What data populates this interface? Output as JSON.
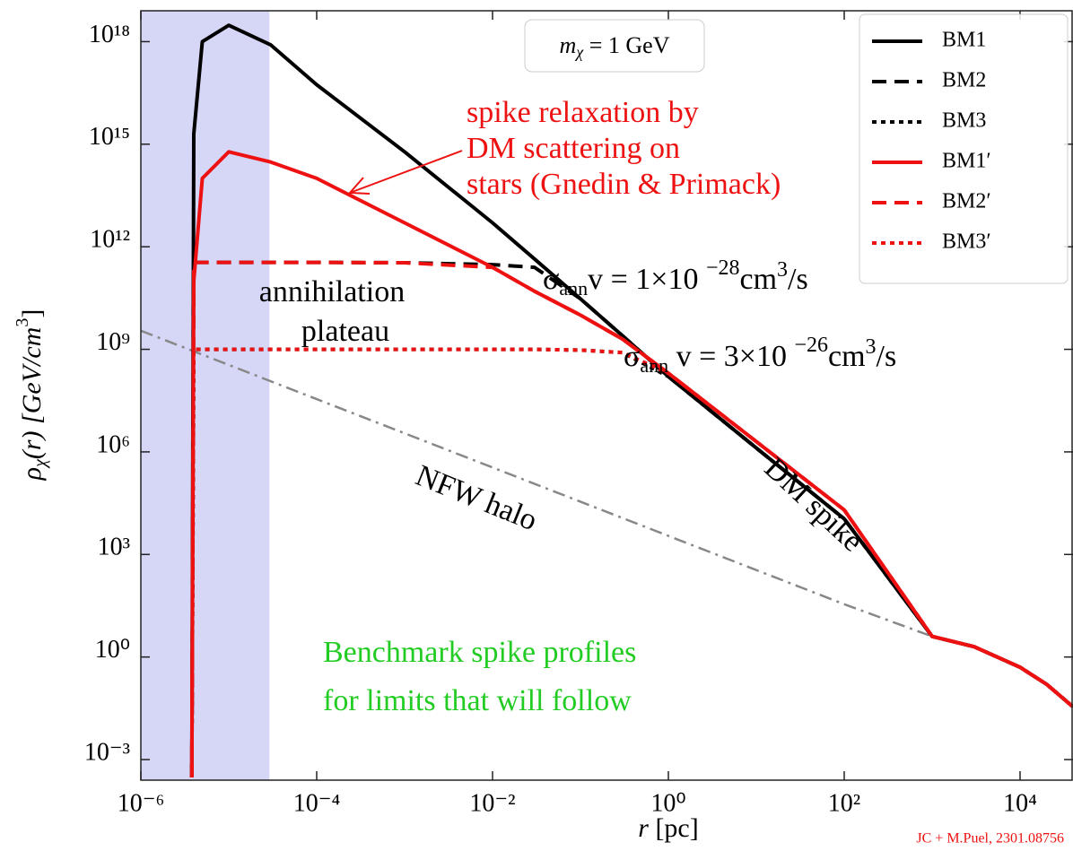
{
  "chart_data": {
    "type": "line",
    "log_x": true,
    "log_y": true,
    "x_label": [
      "r",
      " [pc]"
    ],
    "y_label": [
      "ρ",
      "χ",
      "(r) [GeV/cm",
      "3",
      "]"
    ],
    "xlim": [
      1e-06,
      40000
    ],
    "ylim": [
      0.00025,
      8e+18
    ],
    "xticks": [
      {
        "value": 1e-06,
        "label": "10⁻⁶"
      },
      {
        "value": 0.0001,
        "label": "10⁻⁴"
      },
      {
        "value": 0.01,
        "label": "10⁻²"
      },
      {
        "value": 1,
        "label": "10⁰"
      },
      {
        "value": 100,
        "label": "10²"
      },
      {
        "value": 10000,
        "label": "10⁴"
      }
    ],
    "yticks": [
      {
        "value": 0.001,
        "label": "10⁻³"
      },
      {
        "value": 1,
        "label": "10⁰"
      },
      {
        "value": 1000,
        "label": "10³"
      },
      {
        "value": 1000000.0,
        "label": "10⁶"
      },
      {
        "value": 1000000000.0,
        "label": "10⁹"
      },
      {
        "value": 1000000000000.0,
        "label": "10¹²"
      },
      {
        "value": 1000000000000000.0,
        "label": "10¹⁵"
      },
      {
        "value": 1e+18,
        "label": "10¹⁸"
      }
    ],
    "x": [
      3.8e-06,
      4e-06,
      5e-06,
      1e-05,
      3e-05,
      0.0001,
      0.001,
      0.01,
      0.03,
      0.1,
      0.3,
      1,
      10,
      100,
      1000,
      3000,
      10000,
      20000,
      40000
    ],
    "series": [
      {
        "name": "BM1",
        "color": "#000000",
        "style": "solid",
        "values": [
          0.0003,
          2000000000000000.0,
          1e+18,
          3e+18,
          8e+17,
          5.5e+16,
          600000000000000.0,
          5000000000000.0,
          440000000000.0,
          30000000000.0,
          2500000000.0,
          160000000.0,
          1300000.0,
          11000,
          4,
          2,
          0.5,
          0.16,
          0.035
        ]
      },
      {
        "name": "BM2",
        "color": "#000000",
        "style": "dashed",
        "values": [
          0.0003,
          350000000000.0,
          350000000000.0,
          350000000000.0,
          350000000000.0,
          350000000000.0,
          340000000000.0,
          300000000000.0,
          250000000000.0,
          30000000000.0,
          2500000000.0,
          160000000.0,
          1300000.0,
          11000,
          4,
          2,
          0.5,
          0.16,
          0.035
        ]
      },
      {
        "name": "BM3",
        "color": "#000000",
        "style": "dotted",
        "values": [
          0.0003,
          1000000000.0,
          1000000000.0,
          1000000000.0,
          1000000000.0,
          1000000000.0,
          1000000000.0,
          1000000000.0,
          1000000000.0,
          950000000.0,
          800000000.0,
          160000000.0,
          1300000.0,
          11000,
          4,
          2,
          0.5,
          0.16,
          0.035
        ]
      },
      {
        "name": "BM1′",
        "color": "#ee1111",
        "style": "solid",
        "values": [
          0.0003,
          100000000000.0,
          100000000000000.0,
          600000000000000.0,
          300000000000000.0,
          100000000000000.0,
          5000000000000.0,
          250000000000.0,
          50000000000.0,
          10000000000.0,
          2000000000.0,
          200000000.0,
          2000000.0,
          20000,
          4,
          2,
          0.5,
          0.16,
          0.035
        ]
      },
      {
        "name": "BM2′",
        "color": "#ee1111",
        "style": "dashed",
        "values": [
          0.0003,
          350000000000.0,
          350000000000.0,
          350000000000.0,
          350000000000.0,
          350000000000.0,
          340000000000.0,
          250000000000.0,
          50000000000.0,
          10000000000.0,
          2000000000.0,
          200000000.0,
          2000000.0,
          20000,
          4,
          2,
          0.5,
          0.16,
          0.035
        ]
      },
      {
        "name": "BM3′",
        "color": "#ee1111",
        "style": "dotted",
        "values": [
          0.0003,
          1000000000.0,
          1000000000.0,
          1000000000.0,
          1000000000.0,
          1000000000.0,
          1000000000.0,
          1000000000.0,
          1000000000.0,
          950000000.0,
          800000000.0,
          200000000.0,
          2000000.0,
          20000,
          4,
          2,
          0.5,
          0.16,
          0.035
        ]
      }
    ],
    "halo": {
      "name": "NFW halo",
      "color": "#888888",
      "style": "dashdot",
      "x": [
        1e-06,
        0.0001,
        0.01,
        1,
        100,
        1000,
        3000,
        10000,
        20000,
        40000
      ],
      "values": [
        3500000000.0,
        35000000.0,
        350000,
        3500,
        35,
        4,
        2,
        0.5,
        0.16,
        0.035
      ]
    },
    "shaded_region": {
      "x": [
        1e-06,
        2.9e-05
      ],
      "color": "#d6d6f7"
    },
    "legend": "upper right",
    "annotations": {
      "mass": [
        "m",
        "χ",
        " = 1 GeV"
      ],
      "relaxation": [
        "spike relaxation by",
        "DM scattering on",
        "stars (Gnedin & Primack)"
      ],
      "cross_section_1": [
        "σ",
        "ann",
        "v = 1×10 ",
        "−28",
        "cm",
        "3",
        "/s"
      ],
      "cross_section_2": [
        "σ",
        "ann",
        " v = 3×10 ",
        "−26",
        "cm",
        "3",
        "/s"
      ],
      "plateau": [
        "annihilation",
        "plateau"
      ],
      "spike": "DM spike",
      "benchmark": [
        "Benchmark spike profiles",
        "for limits that will follow"
      ],
      "credit": "JC + M.Puel, 2301.08756"
    }
  }
}
